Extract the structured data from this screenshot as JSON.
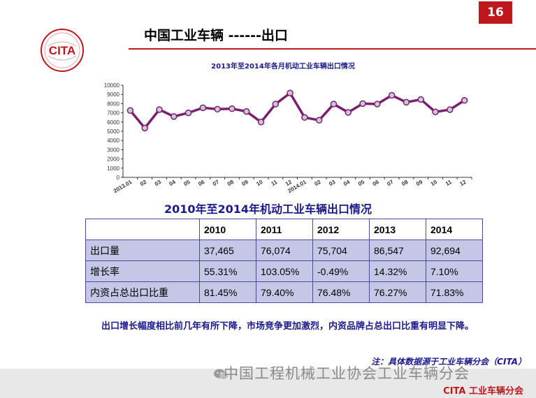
{
  "slide_number": "16",
  "logo_text": "CITA",
  "page_title": "中国工业车辆 ------出口",
  "chart_data": {
    "type": "line",
    "title": "2013年至2014年各月机动工业车辆出口情况",
    "categories": [
      "2013.01",
      "02",
      "03",
      "04",
      "05",
      "06",
      "07",
      "08",
      "09",
      "10",
      "11",
      "12",
      "2014.01",
      "02",
      "03",
      "04",
      "05",
      "06",
      "07",
      "08",
      "09",
      "10",
      "11",
      "12"
    ],
    "series": [
      {
        "values": [
          7250,
          5350,
          7350,
          6600,
          7000,
          7550,
          7400,
          7450,
          7150,
          6000,
          7950,
          9150,
          6500,
          6200,
          7950,
          7050,
          8000,
          7950,
          8900,
          8150,
          8450,
          7100,
          7350,
          8350
        ]
      }
    ],
    "ylim": [
      0,
      10000
    ],
    "yticks": [
      0,
      1000,
      2000,
      3000,
      4000,
      5000,
      6000,
      7000,
      8000,
      9000,
      10000
    ],
    "grid": false,
    "color": "#7a1f6e"
  },
  "table": {
    "title": "2010年至2014年机动工业车辆出口情况",
    "headers": [
      "",
      "2010",
      "2011",
      "2012",
      "2013",
      "2014"
    ],
    "rows": [
      {
        "label": "出口量",
        "values": [
          "37,465",
          "76,074",
          "75,704",
          "86,547",
          "92,694"
        ]
      },
      {
        "label": "增长率",
        "values": [
          "55.31%",
          "103.05%",
          "-0.49%",
          "14.32%",
          "7.10%"
        ]
      },
      {
        "label": "内资占总出口比重",
        "values": [
          "81.45%",
          "79.40%",
          "76.48%",
          "76.27%",
          "71.83%"
        ]
      }
    ]
  },
  "note": "出口增长幅度相比前几年有所下降，市场竞争更加激烈，内资品牌占总出口比重有明显下降。",
  "source": "注：具体数据源于工业车辆分会（CITA）",
  "watermark": "中国工程机械工业协会工业车辆分会",
  "footer_label": "CITA 工业车辆分会"
}
